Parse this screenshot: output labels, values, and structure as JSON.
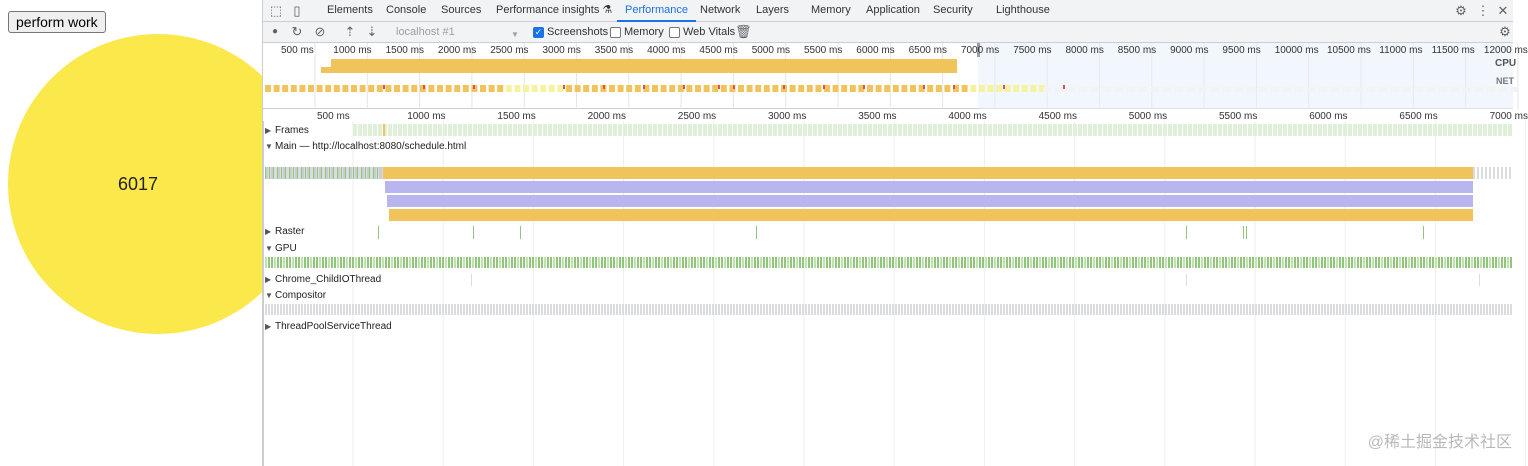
{
  "page": {
    "button_label": "perform work",
    "counter_value": "6017",
    "circle_color": "#fbe84b"
  },
  "devtools": {
    "tabs": [
      "Elements",
      "Console",
      "Sources",
      "Performance insights",
      "Performance",
      "Network",
      "Layers",
      "Memory",
      "Application",
      "Security",
      "Lighthouse"
    ],
    "active_tab": "Performance",
    "toolbar": {
      "profile_select": "localhost #1",
      "screenshots_label": "Screenshots",
      "screenshots_checked": true,
      "memory_label": "Memory",
      "memory_checked": false,
      "web_vitals_label": "Web Vitals",
      "web_vitals_checked": false
    },
    "overview": {
      "ticks": [
        "500 ms",
        "1000 ms",
        "1500 ms",
        "2000 ms",
        "2500 ms",
        "3000 ms",
        "3500 ms",
        "4000 ms",
        "4500 ms",
        "5000 ms",
        "5500 ms",
        "6000 ms",
        "6500 ms",
        "7000 ms",
        "7500 ms",
        "8000 ms",
        "8500 ms",
        "9000 ms",
        "9500 ms",
        "10000 ms",
        "10500 ms",
        "11000 ms",
        "11500 ms",
        "12000 ms"
      ],
      "cpu_label": "CPU",
      "net_label": "NET"
    },
    "main_ticks": [
      "500 ms",
      "1000 ms",
      "1500 ms",
      "2000 ms",
      "2500 ms",
      "3000 ms",
      "3500 ms",
      "4000 ms",
      "4500 ms",
      "5000 ms",
      "5500 ms",
      "6000 ms",
      "6500 ms",
      "7000 ms"
    ],
    "tracks": {
      "frames": "Frames",
      "main": "Main — http://localhost:8080/schedule.html",
      "raster": "Raster",
      "gpu": "GPU",
      "child_io": "Chrome_ChildIOThread",
      "compositor": "Compositor",
      "threadpool": "ThreadPoolServiceThread"
    },
    "colors": {
      "scripting": "#f0c35b",
      "rendering": "#b9b6ef",
      "painting": "#8fc67a",
      "idle": "#dadce0",
      "accent": "#1a73e8"
    }
  },
  "watermark": "@稀土掘金技术社区"
}
